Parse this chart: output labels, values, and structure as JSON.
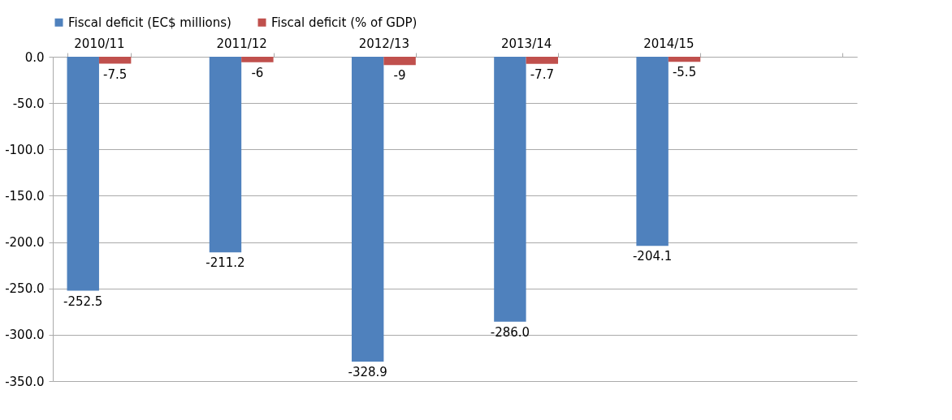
{
  "chart_data": {
    "type": "bar",
    "categories": [
      "2010/11",
      "2011/12",
      "2012/13",
      "2013/14",
      "2014/15",
      null
    ],
    "series": [
      {
        "name": "Fiscal deficit (EC$ millions)",
        "color": "#4f81bd",
        "values": [
          -252.5,
          -211.2,
          -328.9,
          -286.0,
          -204.1,
          null
        ],
        "value_labels": [
          "-252.5",
          "-211.2",
          "-328.9",
          "-286.0",
          "-204.1",
          null
        ]
      },
      {
        "name": "Fiscal deficit (% of GDP)",
        "color": "#c0504d",
        "values": [
          -7.5,
          -6,
          -9,
          -7.7,
          -5.5,
          null
        ],
        "value_labels": [
          "-7.5",
          "-6",
          "-9",
          "-7.7",
          "-5.5",
          null
        ]
      }
    ],
    "ylim": [
      -350,
      0
    ],
    "yticks": [
      {
        "value": 0,
        "label": "0.0"
      },
      {
        "value": -50,
        "label": "-50.0"
      },
      {
        "value": -100,
        "label": "-100.0"
      },
      {
        "value": -150,
        "label": "-150.0"
      },
      {
        "value": -200,
        "label": "-200.0"
      },
      {
        "value": -250,
        "label": "-250.0"
      },
      {
        "value": -300,
        "label": "-300.0"
      },
      {
        "value": -350,
        "label": "-350.0"
      }
    ],
    "grid": "y",
    "legend": "top"
  }
}
